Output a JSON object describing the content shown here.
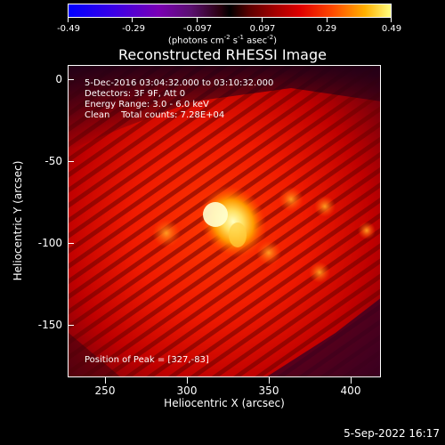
{
  "colorbar": {
    "tick_labels": [
      "-0.49",
      "-0.29",
      "-0.097",
      "0.097",
      "0.29",
      "0.49"
    ],
    "units_text": "(photons cm",
    "units_exp1": "-2",
    "units_mid": " s",
    "units_exp2": "-1",
    "units_mid2": " asec",
    "units_exp3": "-2",
    "units_end": ")"
  },
  "plot": {
    "title": "Reconstructed RHESSI Image",
    "time_range": "5-Dec-2016 03:04:32.000 to 03:10:32.000",
    "detectors": "Detectors: 3F 9F, Att 0",
    "energy": "Energy Range: 3.0 - 6.0 keV",
    "clean": "Clean    Total counts: 7.28E+04",
    "peak": "Position of Peak = [327,-83]",
    "xlabel": "Heliocentric X (arcsec)",
    "ylabel": "Heliocentric Y (arcsec)",
    "x_ticks": [
      "250",
      "300",
      "350",
      "400"
    ],
    "y_ticks": [
      "0",
      "-50",
      "-100",
      "-150"
    ],
    "xlim": [
      237,
      429
    ],
    "ylim": [
      -185,
      7
    ]
  },
  "footer": {
    "timestamp": "5-Sep-2022 16:17"
  }
}
